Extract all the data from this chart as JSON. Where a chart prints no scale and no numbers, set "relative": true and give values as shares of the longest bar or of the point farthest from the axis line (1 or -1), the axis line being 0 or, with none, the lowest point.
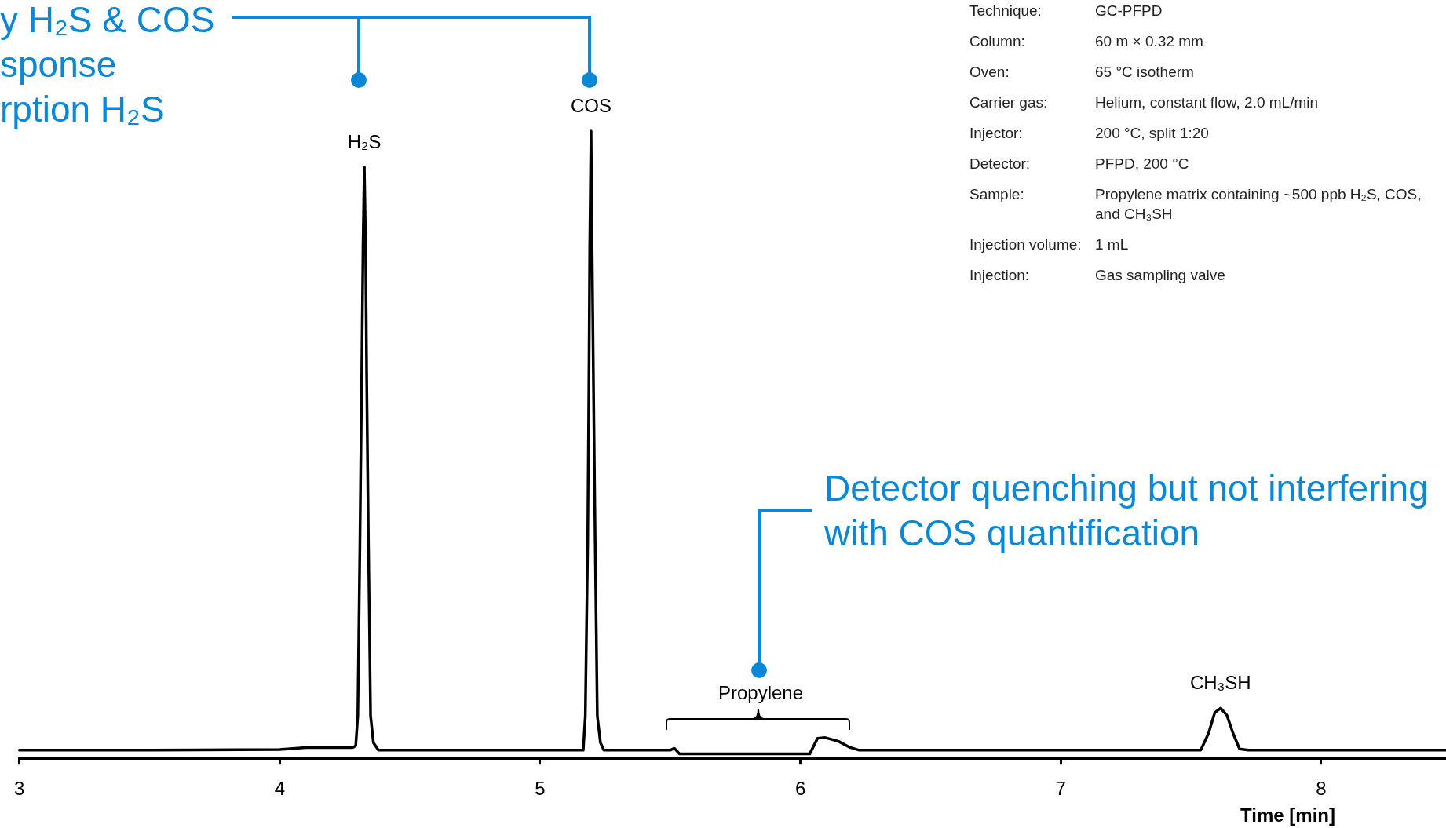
{
  "chart_data": {
    "type": "line",
    "relative": true,
    "xlabel": "Time [min]",
    "xlim": [
      3,
      8.48
    ],
    "xticks": [
      3,
      4,
      5,
      6,
      7,
      8
    ],
    "marker": "none",
    "x": [
      3.0,
      3.5,
      4.0,
      4.1,
      4.28,
      4.292,
      4.3,
      4.308,
      4.315,
      4.32,
      4.325,
      4.33,
      4.334,
      4.341,
      4.349,
      4.36,
      4.379,
      4.6,
      5.0,
      5.166,
      5.174,
      5.183,
      5.188,
      5.191,
      5.196,
      5.2,
      5.205,
      5.212,
      5.22,
      5.232,
      5.245,
      5.5,
      5.516,
      5.536,
      6.036,
      6.066,
      6.096,
      6.147,
      6.187,
      6.226,
      7.538,
      7.568,
      7.592,
      7.614,
      7.638,
      7.662,
      7.687,
      7.72,
      8.48
    ],
    "series": [
      {
        "color": "#000000",
        "values": [
          0.013,
          0.013,
          0.014,
          0.017,
          0.017,
          0.02,
          0.068,
          0.34,
          0.61,
          0.815,
          0.943,
          0.815,
          0.61,
          0.34,
          0.068,
          0.025,
          0.013,
          0.013,
          0.013,
          0.013,
          0.068,
          0.34,
          0.61,
          0.815,
          1.0,
          0.815,
          0.61,
          0.34,
          0.068,
          0.025,
          0.013,
          0.013,
          0.016,
          0.007,
          0.007,
          0.032,
          0.033,
          0.027,
          0.018,
          0.013,
          0.013,
          0.04,
          0.073,
          0.08,
          0.069,
          0.04,
          0.015,
          0.013,
          0.013
        ]
      }
    ],
    "annotations": [
      "y H₂S & COS",
      "sponse",
      "rption H₂S",
      "Detector quenching but not interfering with COS quantification",
      "Propylene",
      "Technique:",
      "GC-PFPD",
      "Column:",
      "60 m × 0.32 mm",
      "Oven:",
      "65 °C isotherm",
      "Carrier gas:",
      "Helium, constant flow, 2.0 mL/min",
      "Injector:",
      "200 °C, split 1:20",
      "Detector:",
      "PFPD, 200 °C",
      "Sample:",
      "Propylene matrix containing ~500 ppb H₂S, COS, and CH₃SH",
      "Injection volume:",
      "1 mL",
      "Injection:",
      "Gas sampling valve",
      {
        "text": "H₂S",
        "x": 4.325,
        "y": 0.943
      },
      {
        "text": "COS",
        "x": 5.196,
        "y": 1.0
      },
      {
        "text": "CH₃SH",
        "x": 7.614,
        "y": 0.08
      }
    ]
  }
}
